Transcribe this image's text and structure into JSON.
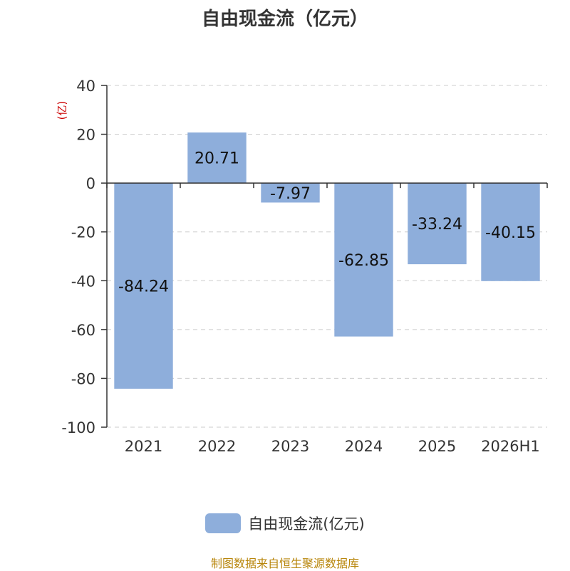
{
  "chart_data": {
    "type": "bar",
    "title": "自由现金流（亿元）",
    "ylabel": "(亿)",
    "categories": [
      "2021",
      "2022",
      "2023",
      "2024",
      "2025",
      "2026H1"
    ],
    "series": [
      {
        "name": "自由现金流(亿元)",
        "values": [
          -84.24,
          20.71,
          -7.97,
          -62.85,
          -33.24,
          -40.15
        ]
      }
    ],
    "data_labels": [
      "-84.24",
      "20.71",
      "-7.97",
      "-62.85",
      "-33.24",
      "-40.15"
    ],
    "yticks": [
      "40",
      "20",
      "0",
      "-20",
      "-40",
      "-60",
      "-80",
      "-100"
    ],
    "ylim": [
      -100,
      40
    ],
    "grid": true,
    "legend_position": "bottom",
    "colors": {
      "bar": "#8eaedb",
      "ylabel": "#cc0000",
      "source": "#b8860b"
    }
  },
  "source_note": "制图数据来自恒生聚源数据库"
}
